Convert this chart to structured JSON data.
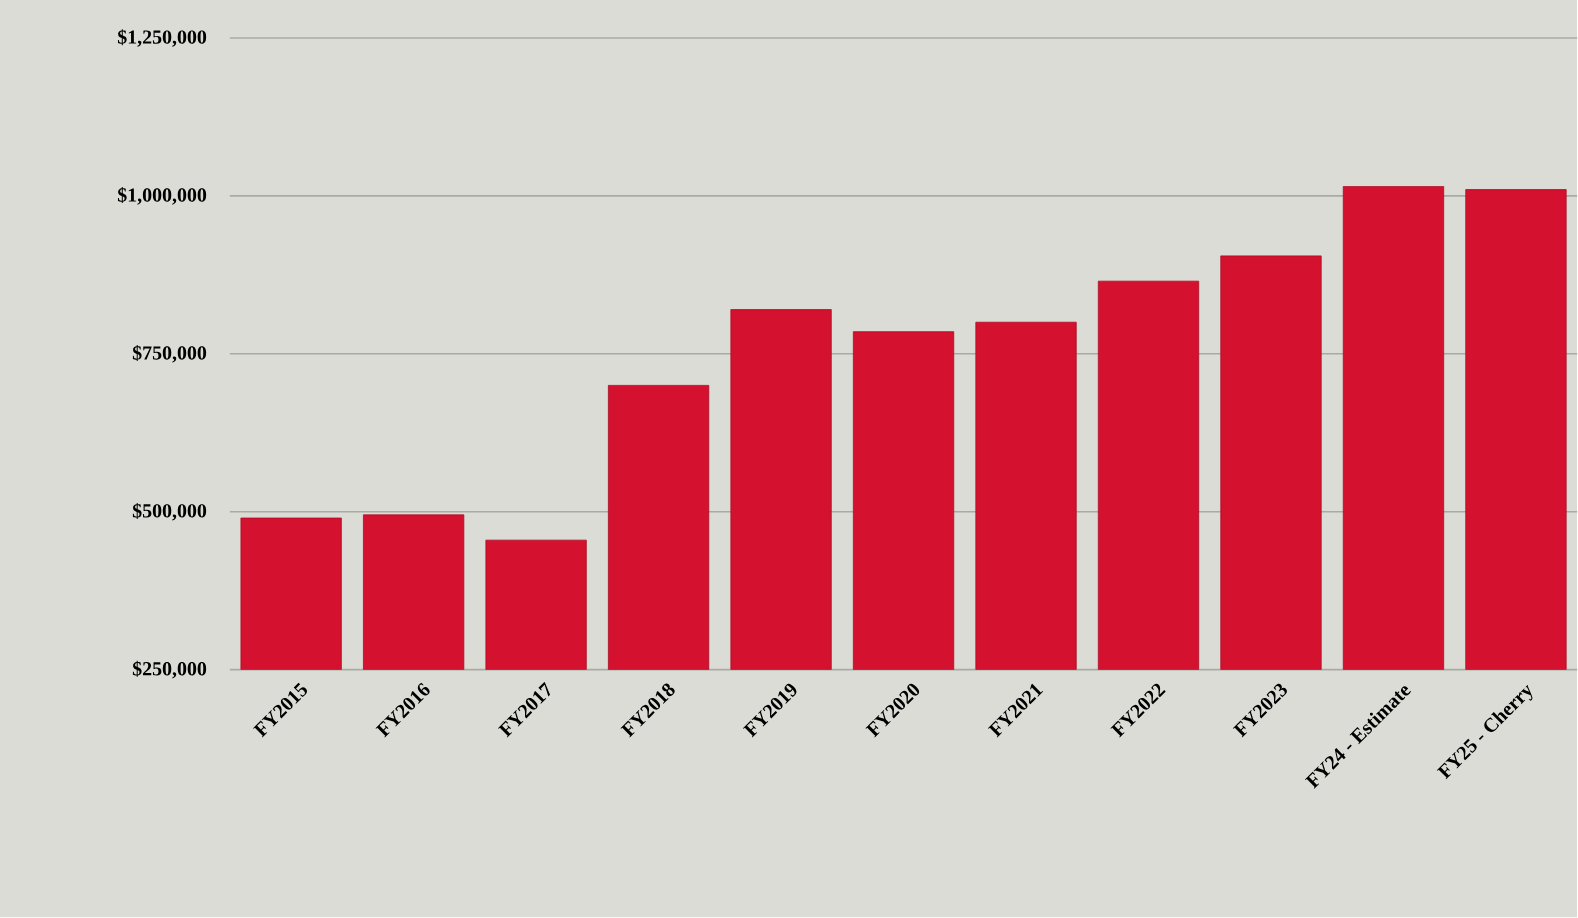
{
  "chart_data": {
    "type": "bar",
    "categories": [
      "FY2015",
      "FY2016",
      "FY2017",
      "FY2018",
      "FY2019",
      "FY2020",
      "FY2021",
      "FY2022",
      "FY2023",
      "FY24 - Estimate",
      "FY25 - Cherry"
    ],
    "values": [
      490000,
      495000,
      455000,
      700000,
      820000,
      785000,
      800000,
      865000,
      905000,
      1015000,
      1010000
    ],
    "color": "#d4112e",
    "ylim": [
      250000,
      1250000
    ],
    "yticks": [
      {
        "value": 250000,
        "label": "$250,000"
      },
      {
        "value": 500000,
        "label": "$500,000"
      },
      {
        "value": 750000,
        "label": "$750,000"
      },
      {
        "value": 1000000,
        "label": "$1,000,000"
      },
      {
        "value": 1250000,
        "label": "$1,250,000"
      }
    ],
    "grid": "y"
  }
}
